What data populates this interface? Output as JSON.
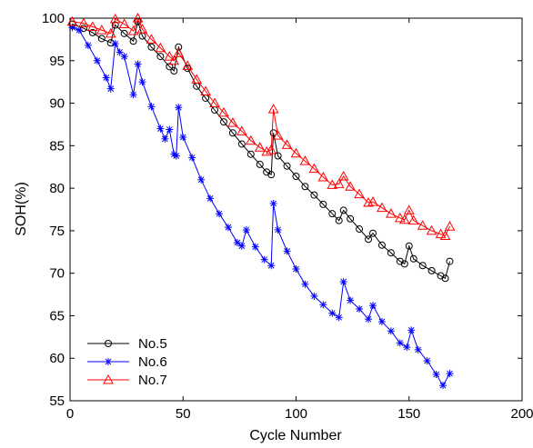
{
  "chart_data": {
    "type": "line",
    "xlabel": "Cycle Number",
    "ylabel": "SOH(%)",
    "xlim": [
      0,
      200
    ],
    "ylim": [
      55,
      100
    ],
    "xticks": [
      0,
      50,
      100,
      150,
      200
    ],
    "yticks": [
      55,
      60,
      65,
      70,
      75,
      80,
      85,
      90,
      95,
      100
    ],
    "grid": false,
    "legend_position": "bottom-left",
    "series": [
      {
        "name": "No.5",
        "color": "#000000",
        "marker": "circle",
        "x": [
          1,
          6,
          10,
          14,
          18,
          20,
          24,
          28,
          30,
          32,
          36,
          40,
          44,
          46,
          48,
          52,
          56,
          60,
          64,
          68,
          72,
          76,
          80,
          84,
          87,
          89,
          90,
          92,
          96,
          100,
          104,
          108,
          112,
          116,
          119,
          121,
          124,
          128,
          132,
          134,
          138,
          142,
          146,
          148,
          150,
          152,
          156,
          160,
          164,
          166,
          168
        ],
        "y": [
          99.3,
          98.8,
          98.3,
          97.6,
          97.1,
          99.2,
          98.2,
          97.3,
          99.6,
          97.9,
          96.6,
          95.5,
          94.3,
          93.8,
          96.6,
          94.1,
          92.0,
          90.6,
          89.2,
          87.8,
          86.5,
          85.2,
          84.0,
          82.8,
          81.9,
          81.6,
          86.5,
          83.8,
          82.6,
          81.4,
          80.2,
          79.2,
          78.1,
          77.0,
          76.2,
          77.4,
          76.4,
          75.2,
          74.0,
          74.7,
          73.3,
          72.4,
          71.4,
          71.1,
          73.2,
          71.7,
          70.9,
          70.3,
          69.7,
          69.4,
          71.4
        ]
      },
      {
        "name": "No.6",
        "color": "#0000ff",
        "marker": "star",
        "x": [
          1,
          4,
          8,
          12,
          16,
          18,
          20,
          22,
          24,
          28,
          30,
          32,
          36,
          40,
          42,
          44,
          46,
          47,
          48,
          50,
          54,
          58,
          62,
          66,
          70,
          74,
          76,
          78,
          82,
          86,
          89,
          90,
          92,
          96,
          100,
          104,
          108,
          112,
          116,
          119,
          121,
          124,
          128,
          132,
          134,
          138,
          142,
          146,
          149,
          151,
          154,
          158,
          162,
          165,
          168
        ],
        "y": [
          98.9,
          98.6,
          96.8,
          95.0,
          93.0,
          91.7,
          97.0,
          96.0,
          95.5,
          91.0,
          94.6,
          92.5,
          89.6,
          87.0,
          85.8,
          86.9,
          84.0,
          83.8,
          89.5,
          86.0,
          83.6,
          81.0,
          78.8,
          77.0,
          75.4,
          73.6,
          73.2,
          75.1,
          73.1,
          71.6,
          70.9,
          78.2,
          75.1,
          72.6,
          70.5,
          68.7,
          67.3,
          66.3,
          65.3,
          64.8,
          69.0,
          66.8,
          65.8,
          64.6,
          66.2,
          64.3,
          63.2,
          61.8,
          61.3,
          63.3,
          61.0,
          59.7,
          58.1,
          56.8,
          58.2
        ]
      },
      {
        "name": "No.7",
        "color": "#ff0000",
        "marker": "triangle",
        "x": [
          1,
          6,
          10,
          14,
          18,
          20,
          24,
          28,
          30,
          32,
          36,
          40,
          44,
          46,
          48,
          52,
          56,
          60,
          64,
          68,
          72,
          76,
          80,
          84,
          87,
          89,
          90,
          92,
          96,
          100,
          104,
          108,
          112,
          116,
          119,
          121,
          124,
          128,
          132,
          134,
          138,
          142,
          146,
          148,
          150,
          152,
          156,
          160,
          164,
          166,
          168
        ],
        "y": [
          99.6,
          99.4,
          99.0,
          98.6,
          98.2,
          99.9,
          99.3,
          98.5,
          100.0,
          98.7,
          97.5,
          96.5,
          95.5,
          95.0,
          95.9,
          94.4,
          92.8,
          91.4,
          90.0,
          88.9,
          87.7,
          86.7,
          85.6,
          84.8,
          84.3,
          84.5,
          89.3,
          86.2,
          85.1,
          84.1,
          83.2,
          82.3,
          81.3,
          80.4,
          80.5,
          81.4,
          80.2,
          79.3,
          78.3,
          78.4,
          77.7,
          77.0,
          76.5,
          76.3,
          77.4,
          76.2,
          75.6,
          75.0,
          74.6,
          74.4,
          75.5
        ]
      }
    ]
  }
}
